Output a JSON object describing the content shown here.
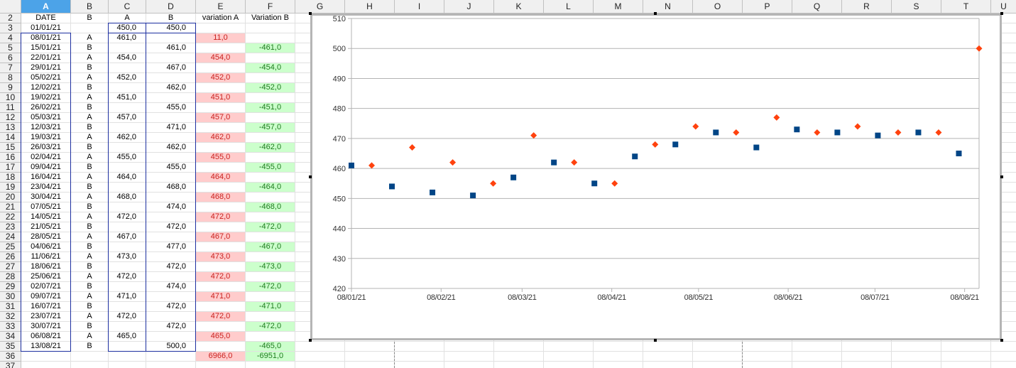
{
  "columns": [
    {
      "label": "A",
      "width": 70,
      "selected": true
    },
    {
      "label": "B",
      "width": 53
    },
    {
      "label": "C",
      "width": 53
    },
    {
      "label": "D",
      "width": 70
    },
    {
      "label": "E",
      "width": 70
    },
    {
      "label": "F",
      "width": 70
    },
    {
      "label": "G",
      "width": 70
    },
    {
      "label": "H",
      "width": 70
    },
    {
      "label": "I",
      "width": 70
    },
    {
      "label": "J",
      "width": 70
    },
    {
      "label": "K",
      "width": 70
    },
    {
      "label": "L",
      "width": 70
    },
    {
      "label": "M",
      "width": 70
    },
    {
      "label": "N",
      "width": 70
    },
    {
      "label": "O",
      "width": 70
    },
    {
      "label": "P",
      "width": 70
    },
    {
      "label": "Q",
      "width": 70
    },
    {
      "label": "R",
      "width": 70
    },
    {
      "label": "S",
      "width": 70
    },
    {
      "label": "T",
      "width": 70
    },
    {
      "label": "U",
      "width": 36
    }
  ],
  "row_numbers": [
    "2",
    "3",
    "4",
    "5",
    "6",
    "7",
    "8",
    "9",
    "10",
    "11",
    "12",
    "13",
    "14",
    "15",
    "16",
    "17",
    "18",
    "19",
    "20",
    "21",
    "22",
    "23",
    "24",
    "25",
    "26",
    "27",
    "28",
    "29",
    "30",
    "31",
    "32",
    "33",
    "34",
    "35",
    "36",
    "37"
  ],
  "header_row": {
    "date": "DATE",
    "b": "B",
    "c": "A",
    "d": "B",
    "e": "variation A",
    "f": "Variation B"
  },
  "rows": [
    {
      "date": "01/01/21",
      "b": "",
      "c": "450,0",
      "d": "450,0",
      "e": "",
      "f": ""
    },
    {
      "date": "08/01/21",
      "b": "A",
      "c": "461,0",
      "d": "",
      "e": "11,0",
      "f": ""
    },
    {
      "date": "15/01/21",
      "b": "B",
      "c": "",
      "d": "461,0",
      "e": "",
      "f": "-461,0"
    },
    {
      "date": "22/01/21",
      "b": "A",
      "c": "454,0",
      "d": "",
      "e": "454,0",
      "f": ""
    },
    {
      "date": "29/01/21",
      "b": "B",
      "c": "",
      "d": "467,0",
      "e": "",
      "f": "-454,0"
    },
    {
      "date": "05/02/21",
      "b": "A",
      "c": "452,0",
      "d": "",
      "e": "452,0",
      "f": ""
    },
    {
      "date": "12/02/21",
      "b": "B",
      "c": "",
      "d": "462,0",
      "e": "",
      "f": "-452,0"
    },
    {
      "date": "19/02/21",
      "b": "A",
      "c": "451,0",
      "d": "",
      "e": "451,0",
      "f": ""
    },
    {
      "date": "26/02/21",
      "b": "B",
      "c": "",
      "d": "455,0",
      "e": "",
      "f": "-451,0"
    },
    {
      "date": "05/03/21",
      "b": "A",
      "c": "457,0",
      "d": "",
      "e": "457,0",
      "f": ""
    },
    {
      "date": "12/03/21",
      "b": "B",
      "c": "",
      "d": "471,0",
      "e": "",
      "f": "-457,0"
    },
    {
      "date": "19/03/21",
      "b": "A",
      "c": "462,0",
      "d": "",
      "e": "462,0",
      "f": ""
    },
    {
      "date": "26/03/21",
      "b": "B",
      "c": "",
      "d": "462,0",
      "e": "",
      "f": "-462,0"
    },
    {
      "date": "02/04/21",
      "b": "A",
      "c": "455,0",
      "d": "",
      "e": "455,0",
      "f": ""
    },
    {
      "date": "09/04/21",
      "b": "B",
      "c": "",
      "d": "455,0",
      "e": "",
      "f": "-455,0"
    },
    {
      "date": "16/04/21",
      "b": "A",
      "c": "464,0",
      "d": "",
      "e": "464,0",
      "f": ""
    },
    {
      "date": "23/04/21",
      "b": "B",
      "c": "",
      "d": "468,0",
      "e": "",
      "f": "-464,0"
    },
    {
      "date": "30/04/21",
      "b": "A",
      "c": "468,0",
      "d": "",
      "e": "468,0",
      "f": ""
    },
    {
      "date": "07/05/21",
      "b": "B",
      "c": "",
      "d": "474,0",
      "e": "",
      "f": "-468,0"
    },
    {
      "date": "14/05/21",
      "b": "A",
      "c": "472,0",
      "d": "",
      "e": "472,0",
      "f": ""
    },
    {
      "date": "21/05/21",
      "b": "B",
      "c": "",
      "d": "472,0",
      "e": "",
      "f": "-472,0"
    },
    {
      "date": "28/05/21",
      "b": "A",
      "c": "467,0",
      "d": "",
      "e": "467,0",
      "f": ""
    },
    {
      "date": "04/06/21",
      "b": "B",
      "c": "",
      "d": "477,0",
      "e": "",
      "f": "-467,0"
    },
    {
      "date": "11/06/21",
      "b": "A",
      "c": "473,0",
      "d": "",
      "e": "473,0",
      "f": ""
    },
    {
      "date": "18/06/21",
      "b": "B",
      "c": "",
      "d": "472,0",
      "e": "",
      "f": "-473,0"
    },
    {
      "date": "25/06/21",
      "b": "A",
      "c": "472,0",
      "d": "",
      "e": "472,0",
      "f": ""
    },
    {
      "date": "02/07/21",
      "b": "B",
      "c": "",
      "d": "474,0",
      "e": "",
      "f": "-472,0"
    },
    {
      "date": "09/07/21",
      "b": "A",
      "c": "471,0",
      "d": "",
      "e": "471,0",
      "f": ""
    },
    {
      "date": "16/07/21",
      "b": "B",
      "c": "",
      "d": "472,0",
      "e": "",
      "f": "-471,0"
    },
    {
      "date": "23/07/21",
      "b": "A",
      "c": "472,0",
      "d": "",
      "e": "472,0",
      "f": ""
    },
    {
      "date": "30/07/21",
      "b": "B",
      "c": "",
      "d": "472,0",
      "e": "",
      "f": "-472,0"
    },
    {
      "date": "06/08/21",
      "b": "A",
      "c": "465,0",
      "d": "",
      "e": "465,0",
      "f": ""
    },
    {
      "date": "13/08/21",
      "b": "B",
      "c": "",
      "d": "500,0",
      "e": "",
      "f": "-465,0"
    }
  ],
  "totals": {
    "e": "6966,0",
    "f": "-6951,0"
  },
  "colors": {
    "pink_bg": "#ffcccc",
    "pink_text": "#c9211e",
    "green_bg": "#ccffcc",
    "green_text": "#1e7b1e",
    "series_a": "#004586",
    "series_b": "#ff420e",
    "selected_header": "#4ca3e8"
  },
  "chart_data": {
    "type": "scatter",
    "title": "",
    "xlabel": "",
    "ylabel": "",
    "ylim": [
      420,
      510
    ],
    "yticks": [
      "420",
      "430",
      "440",
      "450",
      "460",
      "470",
      "480",
      "490",
      "500",
      "510"
    ],
    "xticks": [
      {
        "x": "2021-01-08",
        "label": "08/01/21"
      },
      {
        "x": "2021-02-08",
        "label": "08/02/21"
      },
      {
        "x": "2021-03-08",
        "label": "08/03/21"
      },
      {
        "x": "2021-04-08",
        "label": "08/04/21"
      },
      {
        "x": "2021-05-08",
        "label": "08/05/21"
      },
      {
        "x": "2021-06-08",
        "label": "08/06/21"
      },
      {
        "x": "2021-07-08",
        "label": "08/07/21"
      },
      {
        "x": "2021-08-08",
        "label": "08/08/21"
      }
    ],
    "xlim": [
      "2021-01-08",
      "2021-08-13"
    ],
    "grid": true,
    "series": [
      {
        "marker": "square",
        "color": "#004586",
        "points": [
          [
            "2021-01-08",
            461
          ],
          [
            "2021-01-22",
            454
          ],
          [
            "2021-02-05",
            452
          ],
          [
            "2021-02-19",
            451
          ],
          [
            "2021-03-05",
            457
          ],
          [
            "2021-03-19",
            462
          ],
          [
            "2021-04-02",
            455
          ],
          [
            "2021-04-16",
            464
          ],
          [
            "2021-04-30",
            468
          ],
          [
            "2021-05-14",
            472
          ],
          [
            "2021-05-28",
            467
          ],
          [
            "2021-06-11",
            473
          ],
          [
            "2021-06-25",
            472
          ],
          [
            "2021-07-09",
            471
          ],
          [
            "2021-07-23",
            472
          ],
          [
            "2021-08-06",
            465
          ]
        ]
      },
      {
        "marker": "diamond",
        "color": "#ff420e",
        "points": [
          [
            "2021-01-15",
            461
          ],
          [
            "2021-01-29",
            467
          ],
          [
            "2021-02-12",
            462
          ],
          [
            "2021-02-26",
            455
          ],
          [
            "2021-03-12",
            471
          ],
          [
            "2021-03-26",
            462
          ],
          [
            "2021-04-09",
            455
          ],
          [
            "2021-04-23",
            468
          ],
          [
            "2021-05-07",
            474
          ],
          [
            "2021-05-21",
            472
          ],
          [
            "2021-06-04",
            477
          ],
          [
            "2021-06-18",
            472
          ],
          [
            "2021-07-02",
            474
          ],
          [
            "2021-07-16",
            472
          ],
          [
            "2021-07-30",
            472
          ],
          [
            "2021-08-13",
            500
          ]
        ]
      }
    ]
  }
}
